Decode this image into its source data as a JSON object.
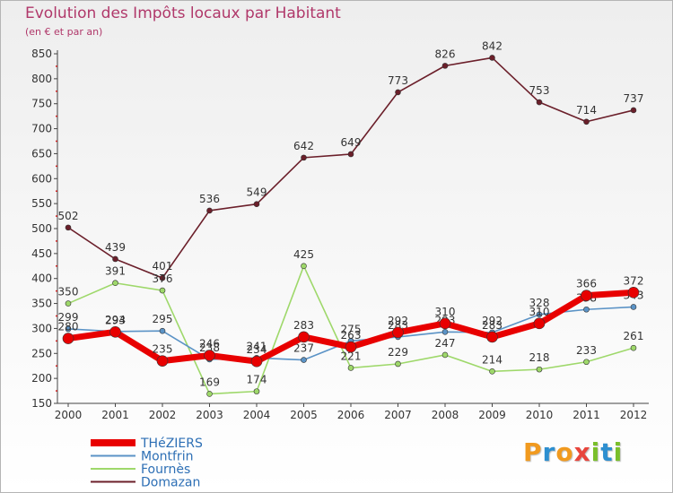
{
  "header": {
    "title": "Evolution des Impôts locaux par Habitant",
    "subtitle": "(en € et par an)"
  },
  "logo": {
    "text": "Proxiti"
  },
  "chart_data": {
    "type": "line",
    "title": "Evolution des Impôts locaux par Habitant",
    "subtitle": "(en € et par an)",
    "xlabel": "",
    "ylabel": "",
    "ylim": [
      150,
      850
    ],
    "yticks": [
      150,
      200,
      250,
      300,
      350,
      400,
      450,
      500,
      550,
      600,
      650,
      700,
      750,
      800,
      850
    ],
    "grid": false,
    "legend_position": "bottom-left",
    "categories": [
      "2000",
      "2001",
      "2002",
      "2003",
      "2004",
      "2005",
      "2006",
      "2007",
      "2008",
      "2009",
      "2010",
      "2011",
      "2012"
    ],
    "series": [
      {
        "name": "Domazan",
        "color": "#6b1f2a",
        "values": [
          502,
          439,
          401,
          536,
          549,
          642,
          649,
          773,
          826,
          842,
          753,
          714,
          737
        ]
      },
      {
        "name": "Fournès",
        "color": "#9ed86a",
        "values": [
          350,
          391,
          376,
          169,
          174,
          425,
          221,
          229,
          247,
          214,
          218,
          233,
          261
        ]
      },
      {
        "name": "Montfrin",
        "color": "#5b93c6",
        "values": [
          299,
          294,
          295,
          238,
          241,
          237,
          275,
          283,
          293,
          292,
          328,
          338,
          343
        ]
      },
      {
        "name": "THéZIERS",
        "color": "#e80000",
        "values": [
          280,
          293,
          235,
          246,
          234,
          283,
          263,
          292,
          310,
          283,
          310,
          366,
          372
        ]
      }
    ],
    "legend": [
      "THéZIERS",
      "Montfrin",
      "Fournès",
      "Domazan"
    ]
  }
}
